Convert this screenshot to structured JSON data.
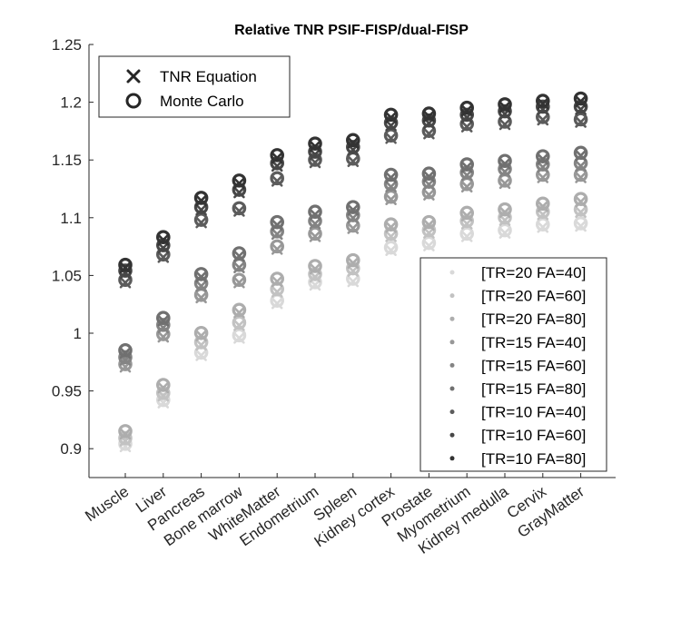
{
  "chart_data": {
    "type": "scatter",
    "title": "Relative TNR PSIF-FISP/dual-FISP",
    "xlabel": "",
    "ylabel": "",
    "ylim": [
      0.875,
      1.25
    ],
    "yticks": [
      0.9,
      0.95,
      1,
      1.05,
      1.1,
      1.15,
      1.2,
      1.25
    ],
    "ytick_labels": [
      "0.9",
      "0.95",
      "1",
      "1.05",
      "1.1",
      "1.15",
      "1.2",
      "1.25"
    ],
    "categories": [
      "Muscle",
      "Liver",
      "Pancreas",
      "Bone marrow",
      "WhiteMatter",
      "Endometrium",
      "Spleen",
      "Kidney cortex",
      "Prostate",
      "Myometrium",
      "Kidney medulla",
      "Cervix",
      "GrayMatter"
    ],
    "marker_legend": [
      {
        "label": "TNR Equation",
        "marker": "x"
      },
      {
        "label": "Monte Carlo",
        "marker": "o"
      }
    ],
    "series": [
      {
        "name": "[TR=20 FA=40]",
        "color": "#d9d9d9",
        "values": [
          0.903,
          0.941,
          0.982,
          0.997,
          1.027,
          1.043,
          1.046,
          1.073,
          1.077,
          1.085,
          1.088,
          1.093,
          1.094
        ]
      },
      {
        "name": "[TR=20 FA=60]",
        "color": "#c2c2c2",
        "values": [
          0.908,
          0.947,
          0.991,
          1.008,
          1.037,
          1.05,
          1.055,
          1.085,
          1.088,
          1.096,
          1.099,
          1.104,
          1.106
        ]
      },
      {
        "name": "[TR=20 FA=80]",
        "color": "#adadad",
        "values": [
          0.914,
          0.954,
          0.999,
          1.019,
          1.046,
          1.057,
          1.062,
          1.093,
          1.095,
          1.103,
          1.106,
          1.111,
          1.115
        ]
      },
      {
        "name": "[TR=15 FA=40]",
        "color": "#989898",
        "values": [
          0.972,
          0.998,
          1.032,
          1.045,
          1.074,
          1.085,
          1.092,
          1.117,
          1.121,
          1.128,
          1.131,
          1.136,
          1.136
        ]
      },
      {
        "name": "[TR=15 FA=60]",
        "color": "#848484",
        "values": [
          0.978,
          1.006,
          1.042,
          1.058,
          1.087,
          1.096,
          1.101,
          1.128,
          1.13,
          1.138,
          1.141,
          1.145,
          1.146
        ]
      },
      {
        "name": "[TR=15 FA=80]",
        "color": "#707070",
        "values": [
          0.984,
          1.012,
          1.05,
          1.068,
          1.095,
          1.104,
          1.108,
          1.136,
          1.137,
          1.145,
          1.148,
          1.152,
          1.155
        ]
      },
      {
        "name": "[TR=10 FA=40]",
        "color": "#5c5c5c",
        "values": [
          1.045,
          1.067,
          1.097,
          1.107,
          1.133,
          1.149,
          1.15,
          1.17,
          1.174,
          1.18,
          1.182,
          1.186,
          1.184
        ]
      },
      {
        "name": "[TR=10 FA=60]",
        "color": "#474747",
        "values": [
          1.053,
          1.075,
          1.108,
          1.123,
          1.146,
          1.156,
          1.16,
          1.181,
          1.183,
          1.188,
          1.191,
          1.195,
          1.195
        ]
      },
      {
        "name": "[TR=10 FA=80]",
        "color": "#333333",
        "values": [
          1.058,
          1.082,
          1.116,
          1.131,
          1.153,
          1.163,
          1.166,
          1.188,
          1.189,
          1.194,
          1.197,
          1.2,
          1.202
        ]
      }
    ]
  }
}
